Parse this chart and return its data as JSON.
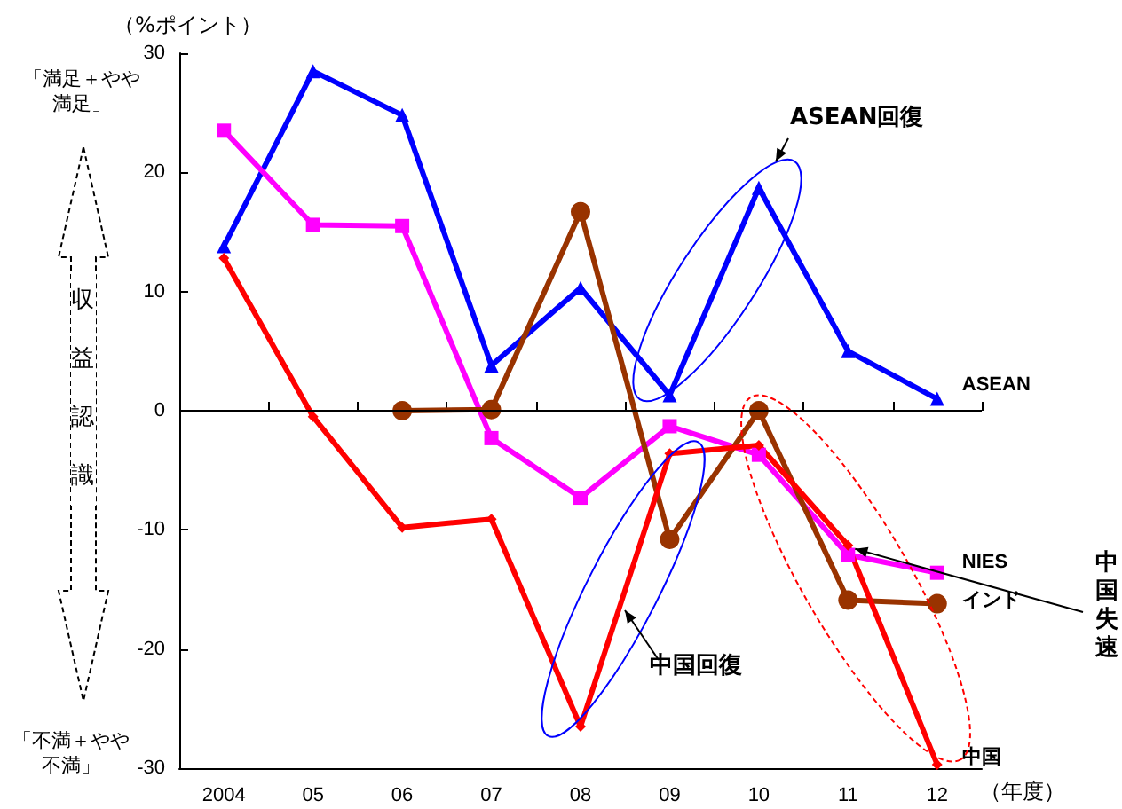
{
  "chart_data": {
    "type": "line",
    "ylabel": "（%ポイント）",
    "xlabel": "（年度）",
    "categories": [
      "2004",
      "05",
      "06",
      "07",
      "08",
      "09",
      "10",
      "11",
      "12"
    ],
    "ref_lines": [
      {
        "axis": "y",
        "value": 0
      }
    ],
    "ylim": [
      -30,
      30
    ],
    "yticks": [
      -30,
      -20,
      -10,
      0,
      10,
      20,
      30
    ],
    "grid": false,
    "legend": false,
    "line_style": "solid",
    "series": [
      {
        "name": "ASEAN",
        "color": "#0000ff",
        "marker": "triangle",
        "values": [
          13.8,
          28.5,
          24.8,
          3.8,
          10.3,
          1.3,
          18.7,
          5.0,
          1.0
        ]
      },
      {
        "name": "NIES",
        "color": "#ff00ff",
        "marker": "square",
        "values": [
          23.5,
          15.6,
          15.5,
          -2.3,
          -7.3,
          -1.3,
          -3.7,
          -12.1,
          -13.6
        ]
      },
      {
        "name": "インド",
        "color": "#993300",
        "marker": "circle",
        "values": [
          null,
          null,
          0,
          0.1,
          16.7,
          -10.8,
          0,
          -15.9,
          -16.2
        ]
      },
      {
        "name": "中国",
        "color": "#ff0000",
        "marker": "diamond",
        "values": [
          12.8,
          -0.5,
          -9.8,
          -9.1,
          -26.5,
          -3.6,
          -2.9,
          -11.3,
          -29.7
        ]
      }
    ],
    "annotations": [
      "ASEAN回復",
      "中国回復",
      {
        "text": "中国失速",
        "x": "11",
        "y": -11.3
      },
      "「満足＋やや満足」",
      "収益認識",
      "「不満＋やや不満」"
    ]
  }
}
